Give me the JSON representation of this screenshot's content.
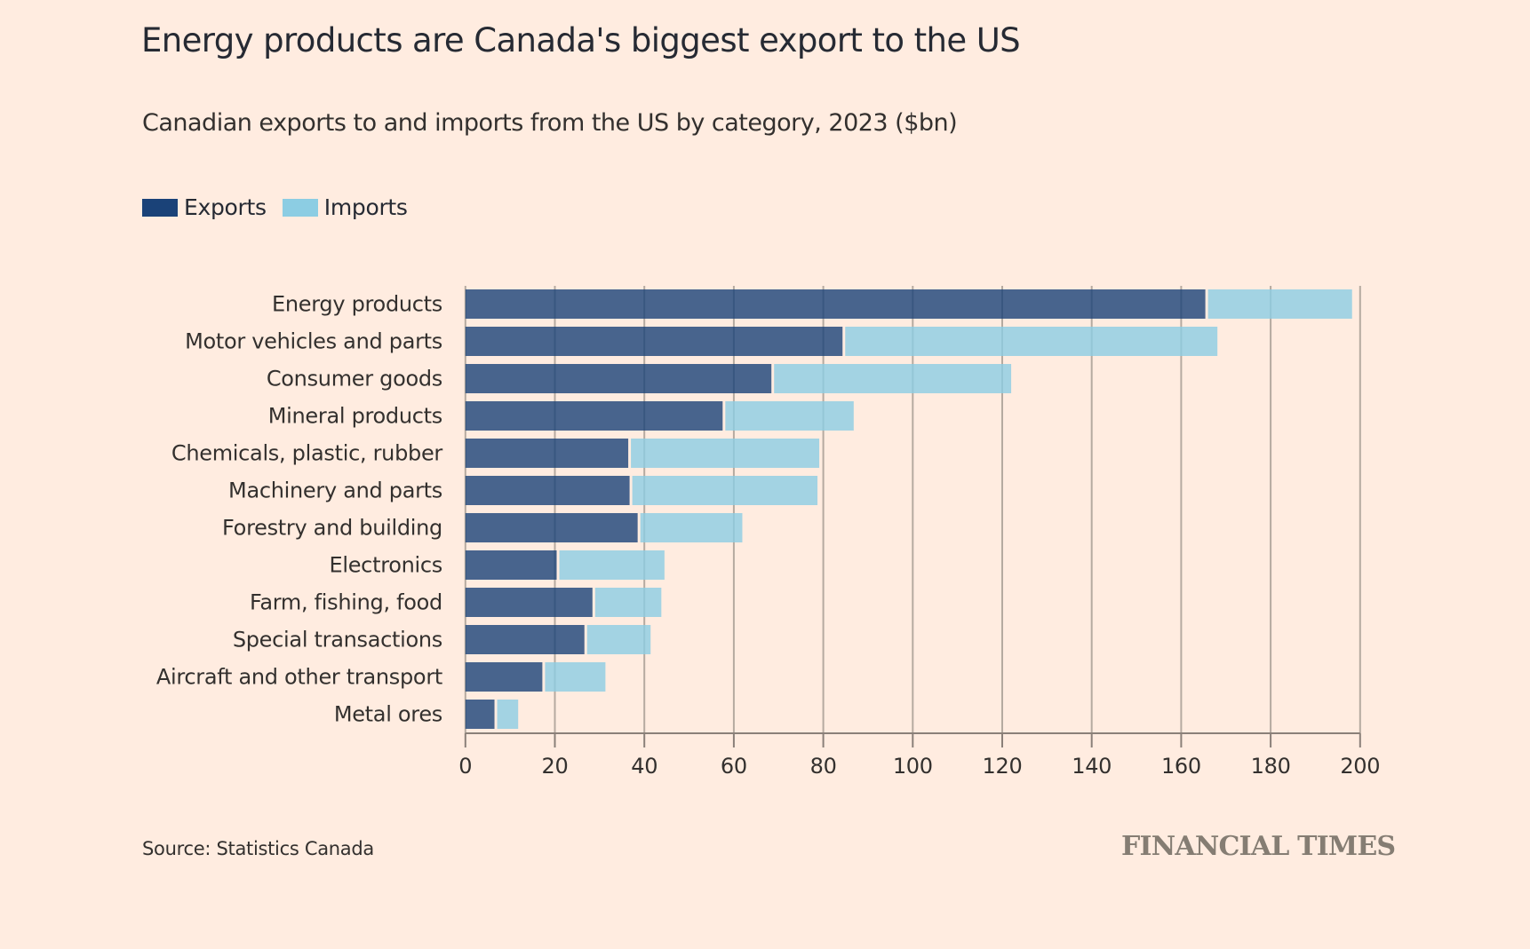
{
  "title": "Energy products are Canada's biggest export to the US",
  "subtitle": "Canadian exports to and imports from the US by category, 2023 ($bn)",
  "legend": [
    {
      "label": "Exports",
      "color": "#1a4278"
    },
    {
      "label": "Imports",
      "color": "#8ccde3"
    }
  ],
  "source": "Source: Statistics Canada",
  "branding": "FINANCIAL TIMES",
  "colors": {
    "background": "#ffece0",
    "exports": "#1a4278",
    "imports": "#8ccde3",
    "grid": "#b5aaa0",
    "axis": "#8a8079"
  },
  "chart_data": {
    "type": "bar",
    "orientation": "horizontal",
    "stacked": true,
    "title": "Energy products are Canada's biggest export to the US",
    "subtitle": "Canadian exports to and imports from the US by category, 2023 ($bn)",
    "xlabel": "",
    "ylabel": "",
    "xlim": [
      0,
      200
    ],
    "xticks": [
      0,
      20,
      40,
      60,
      80,
      100,
      120,
      140,
      160,
      180,
      200
    ],
    "grid": true,
    "legend_position": "top-left",
    "categories": [
      "Energy products",
      "Motor vehicles and parts",
      "Consumer goods",
      "Mineral products",
      "Chemicals, plastic, rubber",
      "Machinery and parts",
      "Forestry and building",
      "Electronics",
      "Farm, fishing, food",
      "Special transactions",
      "Aircraft and other transport",
      "Metal ores"
    ],
    "series": [
      {
        "name": "Exports",
        "values": [
          165.7,
          84.6,
          68.7,
          57.8,
          36.7,
          37.0,
          38.8,
          20.7,
          28.7,
          26.9,
          17.5,
          6.8
        ]
      },
      {
        "name": "Imports",
        "values": [
          32.5,
          83.5,
          53.3,
          29.0,
          42.4,
          41.7,
          23.1,
          23.8,
          15.1,
          14.5,
          13.8,
          5.0
        ]
      }
    ]
  }
}
